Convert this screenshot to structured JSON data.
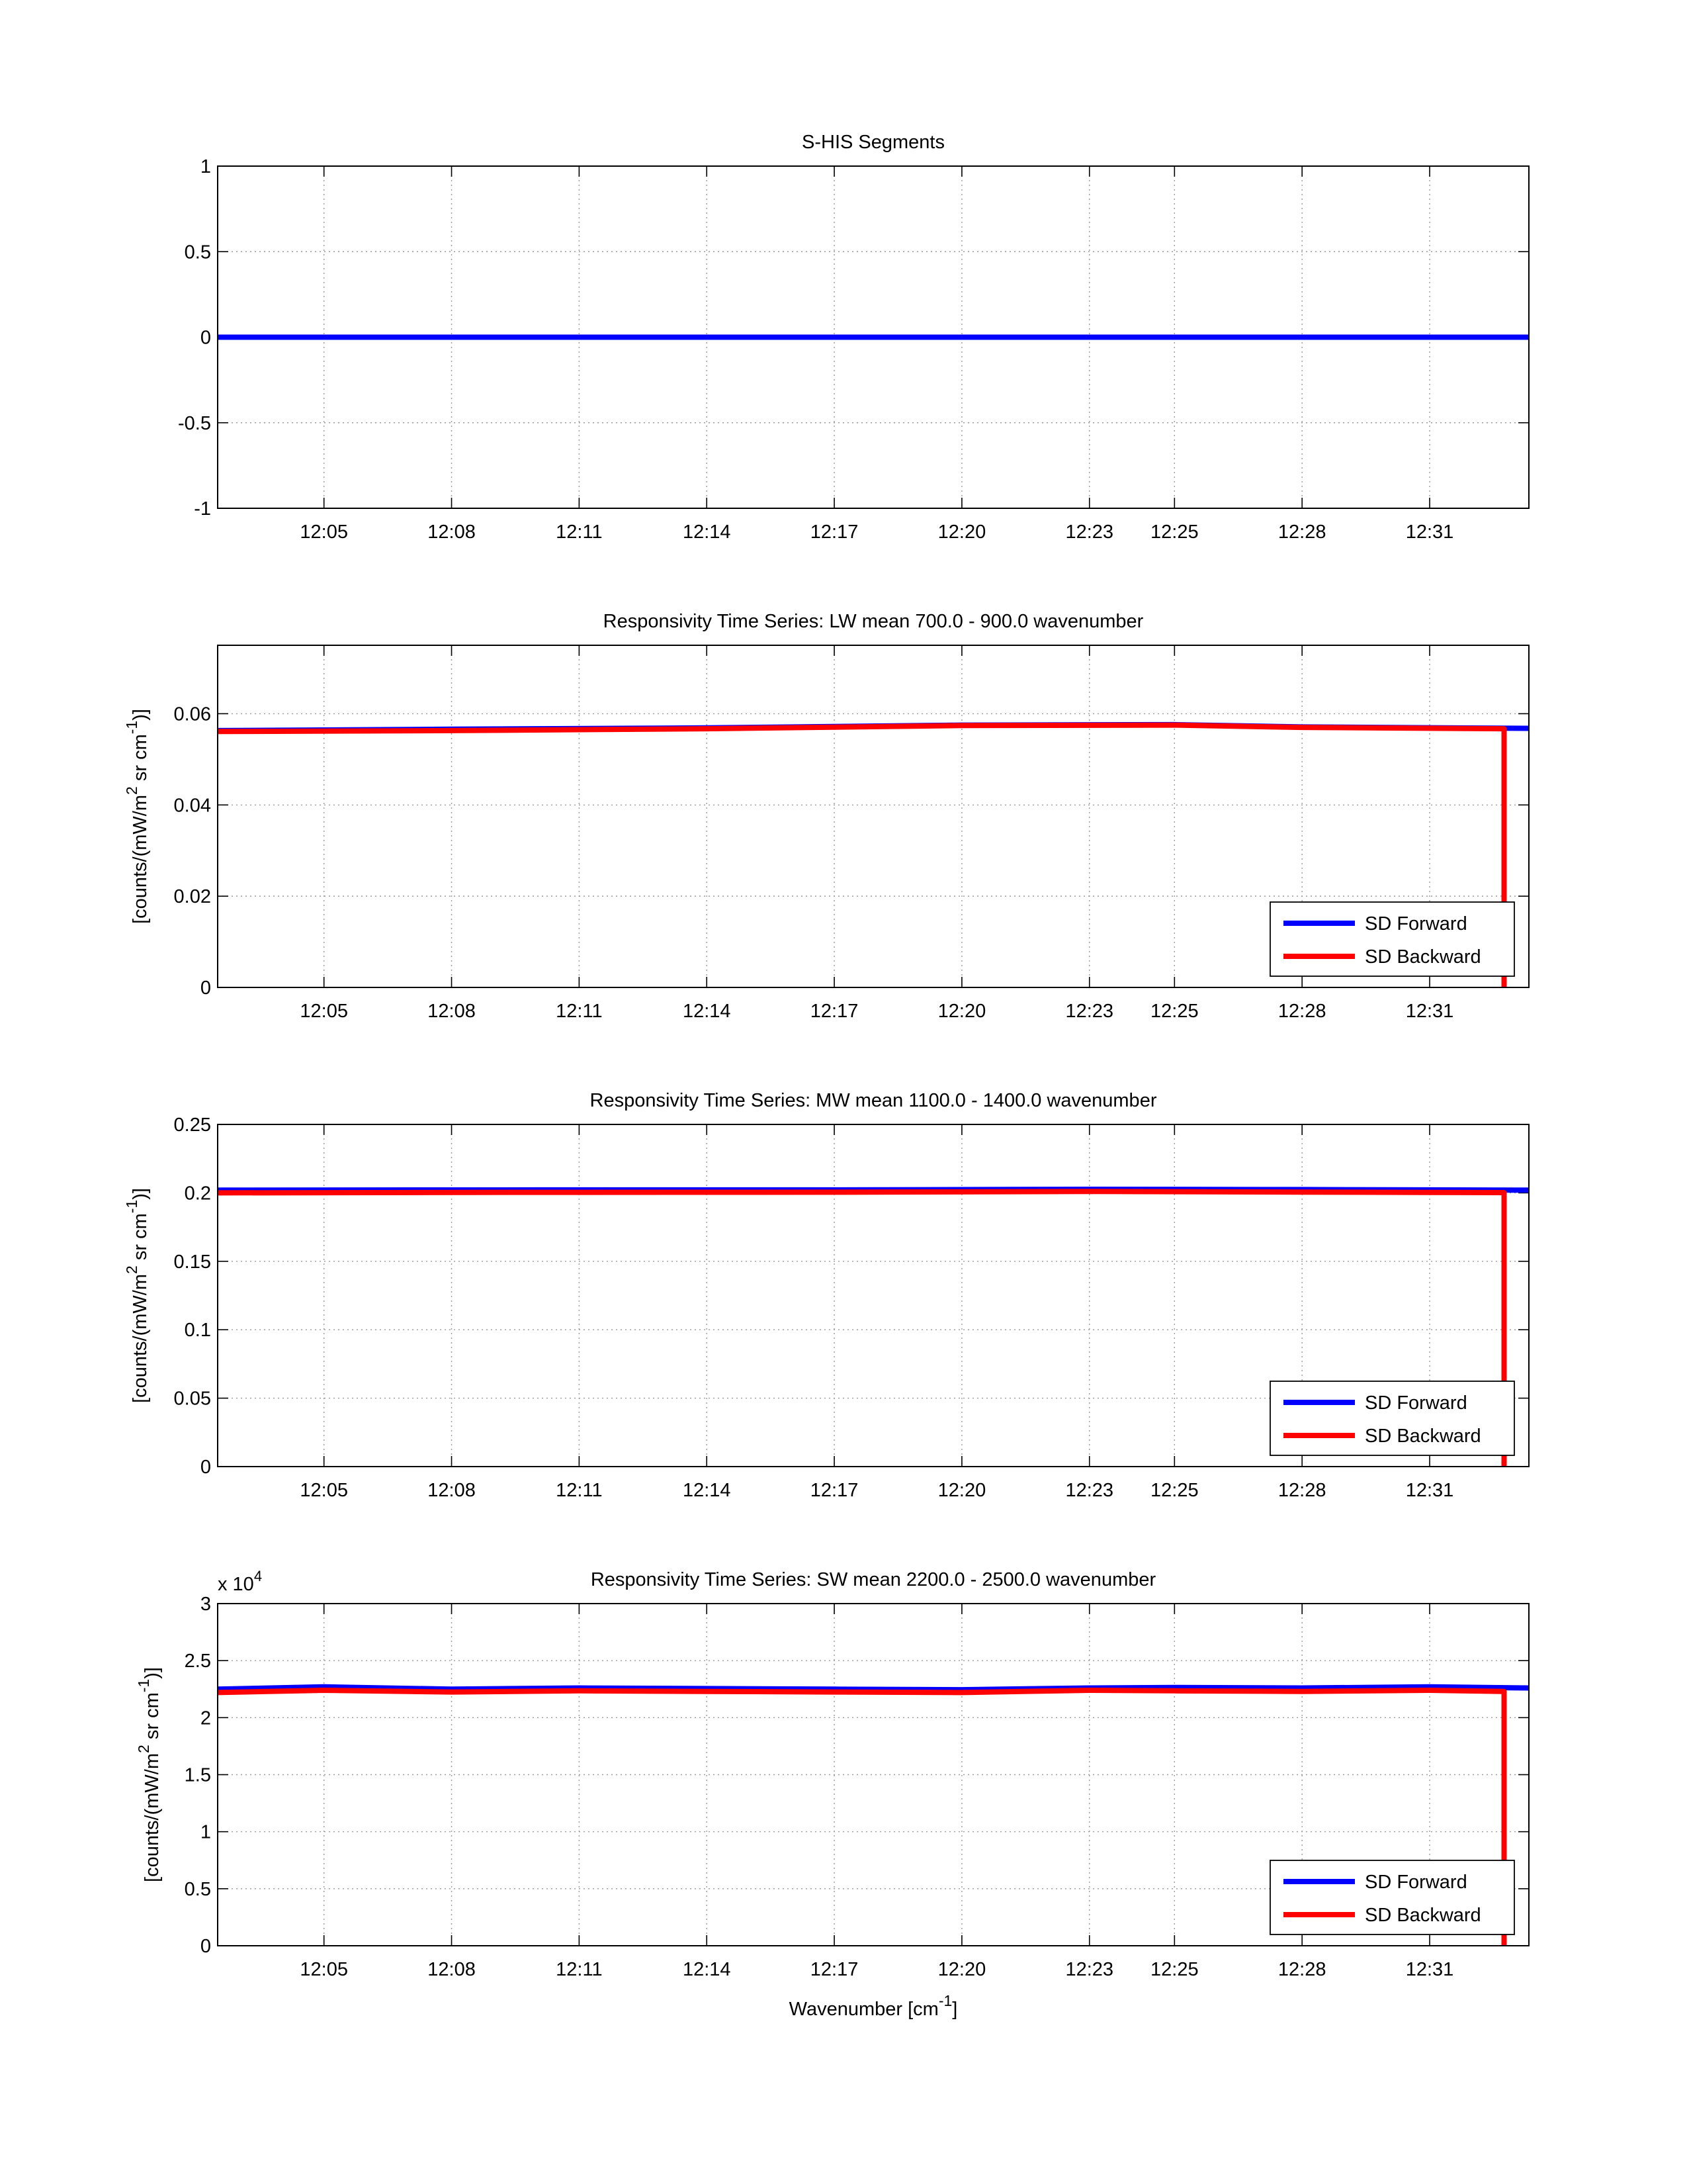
{
  "chart_data": [
    {
      "type": "line",
      "title": "S-HIS Segments",
      "xlabel": "",
      "ylabel": "",
      "x_ticks": [
        "12:05",
        "12:08",
        "12:11",
        "12:14",
        "12:17",
        "12:20",
        "12:23",
        "12:25",
        "12:28",
        "12:31"
      ],
      "x_range": [
        "12:02:30",
        "12:33:20"
      ],
      "ylim": [
        -1,
        1
      ],
      "y_ticks": [
        "1",
        "0.5",
        "0",
        "-0.5",
        "-1"
      ],
      "grid": true,
      "legend": null,
      "series": [
        {
          "color": "#0000ff",
          "x": [
            "12:02:30",
            "12:33:20"
          ],
          "y": [
            0,
            0
          ]
        }
      ]
    },
    {
      "type": "line",
      "title": "Responsivity Time Series: LW mean 700.0 - 900.0 wavenumber",
      "xlabel": "",
      "ylabel_main": "[counts/(mW/m",
      "ylabel_sup1": "2",
      "ylabel_mid": " sr cm",
      "ylabel_sup2": "-1",
      "ylabel_end": ")]",
      "x_ticks": [
        "12:05",
        "12:08",
        "12:11",
        "12:14",
        "12:17",
        "12:20",
        "12:23",
        "12:25",
        "12:28",
        "12:31"
      ],
      "x_range": [
        "12:02:30",
        "12:33:20"
      ],
      "ylim": [
        0,
        0.075
      ],
      "y_ticks": [
        "0",
        "0.02",
        "0.04",
        "0.06"
      ],
      "grid": true,
      "legend": "bottom-right",
      "series": [
        {
          "name": "SD Forward",
          "color": "#0000ff",
          "x": [
            "12:02:30",
            "12:08:00",
            "12:14:00",
            "12:20:00",
            "12:25:00",
            "12:28:00",
            "12:33:20"
          ],
          "y": [
            0.0563,
            0.0566,
            0.0569,
            0.0575,
            0.0576,
            0.0571,
            0.0568
          ]
        },
        {
          "name": "SD Backward",
          "color": "#ff0000",
          "x": [
            "12:02:30",
            "12:08:00",
            "12:14:00",
            "12:20:00",
            "12:25:00",
            "12:28:00",
            "12:32:45",
            "12:32:45"
          ],
          "y": [
            0.0561,
            0.0563,
            0.0567,
            0.0574,
            0.0575,
            0.057,
            0.0567,
            0
          ]
        }
      ]
    },
    {
      "type": "line",
      "title": "Responsivity Time Series: MW mean 1100.0 - 1400.0 wavenumber",
      "xlabel": "",
      "ylabel_main": "[counts/(mW/m",
      "ylabel_sup1": "2",
      "ylabel_mid": " sr cm",
      "ylabel_sup2": "-1",
      "ylabel_end": ")]",
      "x_ticks": [
        "12:05",
        "12:08",
        "12:11",
        "12:14",
        "12:17",
        "12:20",
        "12:23",
        "12:25",
        "12:28",
        "12:31"
      ],
      "x_range": [
        "12:02:30",
        "12:33:20"
      ],
      "ylim": [
        0,
        0.25
      ],
      "y_ticks": [
        "0",
        "0.05",
        "0.1",
        "0.15",
        "0.2",
        "0.25"
      ],
      "grid": true,
      "legend": "bottom-right",
      "series": [
        {
          "name": "SD Forward",
          "color": "#0000ff",
          "x": [
            "12:02:30",
            "12:10:00",
            "12:17:00",
            "12:23:00",
            "12:28:00",
            "12:33:20"
          ],
          "y": [
            0.202,
            0.2022,
            0.2022,
            0.2026,
            0.2024,
            0.202
          ]
        },
        {
          "name": "SD Backward",
          "color": "#ff0000",
          "x": [
            "12:02:30",
            "12:10:00",
            "12:17:00",
            "12:23:00",
            "12:28:00",
            "12:32:45",
            "12:32:45"
          ],
          "y": [
            0.2,
            0.2004,
            0.2005,
            0.201,
            0.2006,
            0.2002,
            0
          ]
        }
      ]
    },
    {
      "type": "line",
      "title": "Responsivity Time Series: SW mean 2200.0 - 2500.0 wavenumber",
      "xlabel_main": "Wavenumber [cm",
      "xlabel_sup": "-1",
      "xlabel_end": "]",
      "ylabel_main": "[counts/(mW/m",
      "ylabel_sup1": "2",
      "ylabel_mid": " sr cm",
      "ylabel_sup2": "-1",
      "ylabel_end": ")]",
      "x_ticks": [
        "12:05",
        "12:08",
        "12:11",
        "12:14",
        "12:17",
        "12:20",
        "12:23",
        "12:25",
        "12:28",
        "12:31"
      ],
      "x_range": [
        "12:02:30",
        "12:33:20"
      ],
      "ylim": [
        0,
        30000
      ],
      "y_ticks": [
        "0",
        "0.5",
        "1",
        "1.5",
        "2",
        "2.5",
        "3"
      ],
      "y_multiplier_base": "x 10",
      "y_multiplier_exp": "4",
      "grid": true,
      "legend": "bottom-right",
      "series": [
        {
          "name": "SD Forward",
          "color": "#0000ff",
          "x": [
            "12:02:30",
            "12:05:00",
            "12:08:00",
            "12:11:00",
            "12:14:00",
            "12:17:00",
            "12:20:00",
            "12:23:00",
            "12:25:00",
            "12:28:00",
            "12:31:00",
            "12:33:20"
          ],
          "y": [
            22500,
            22700,
            22500,
            22600,
            22550,
            22500,
            22450,
            22600,
            22650,
            22600,
            22700,
            22600
          ]
        },
        {
          "name": "SD Backward",
          "color": "#ff0000",
          "x": [
            "12:02:30",
            "12:05:00",
            "12:08:00",
            "12:11:00",
            "12:14:00",
            "12:17:00",
            "12:20:00",
            "12:23:00",
            "12:25:00",
            "12:28:00",
            "12:31:00",
            "12:32:45",
            "12:32:45"
          ],
          "y": [
            22200,
            22400,
            22250,
            22350,
            22300,
            22250,
            22200,
            22400,
            22350,
            22300,
            22400,
            22300,
            0
          ]
        }
      ]
    }
  ]
}
